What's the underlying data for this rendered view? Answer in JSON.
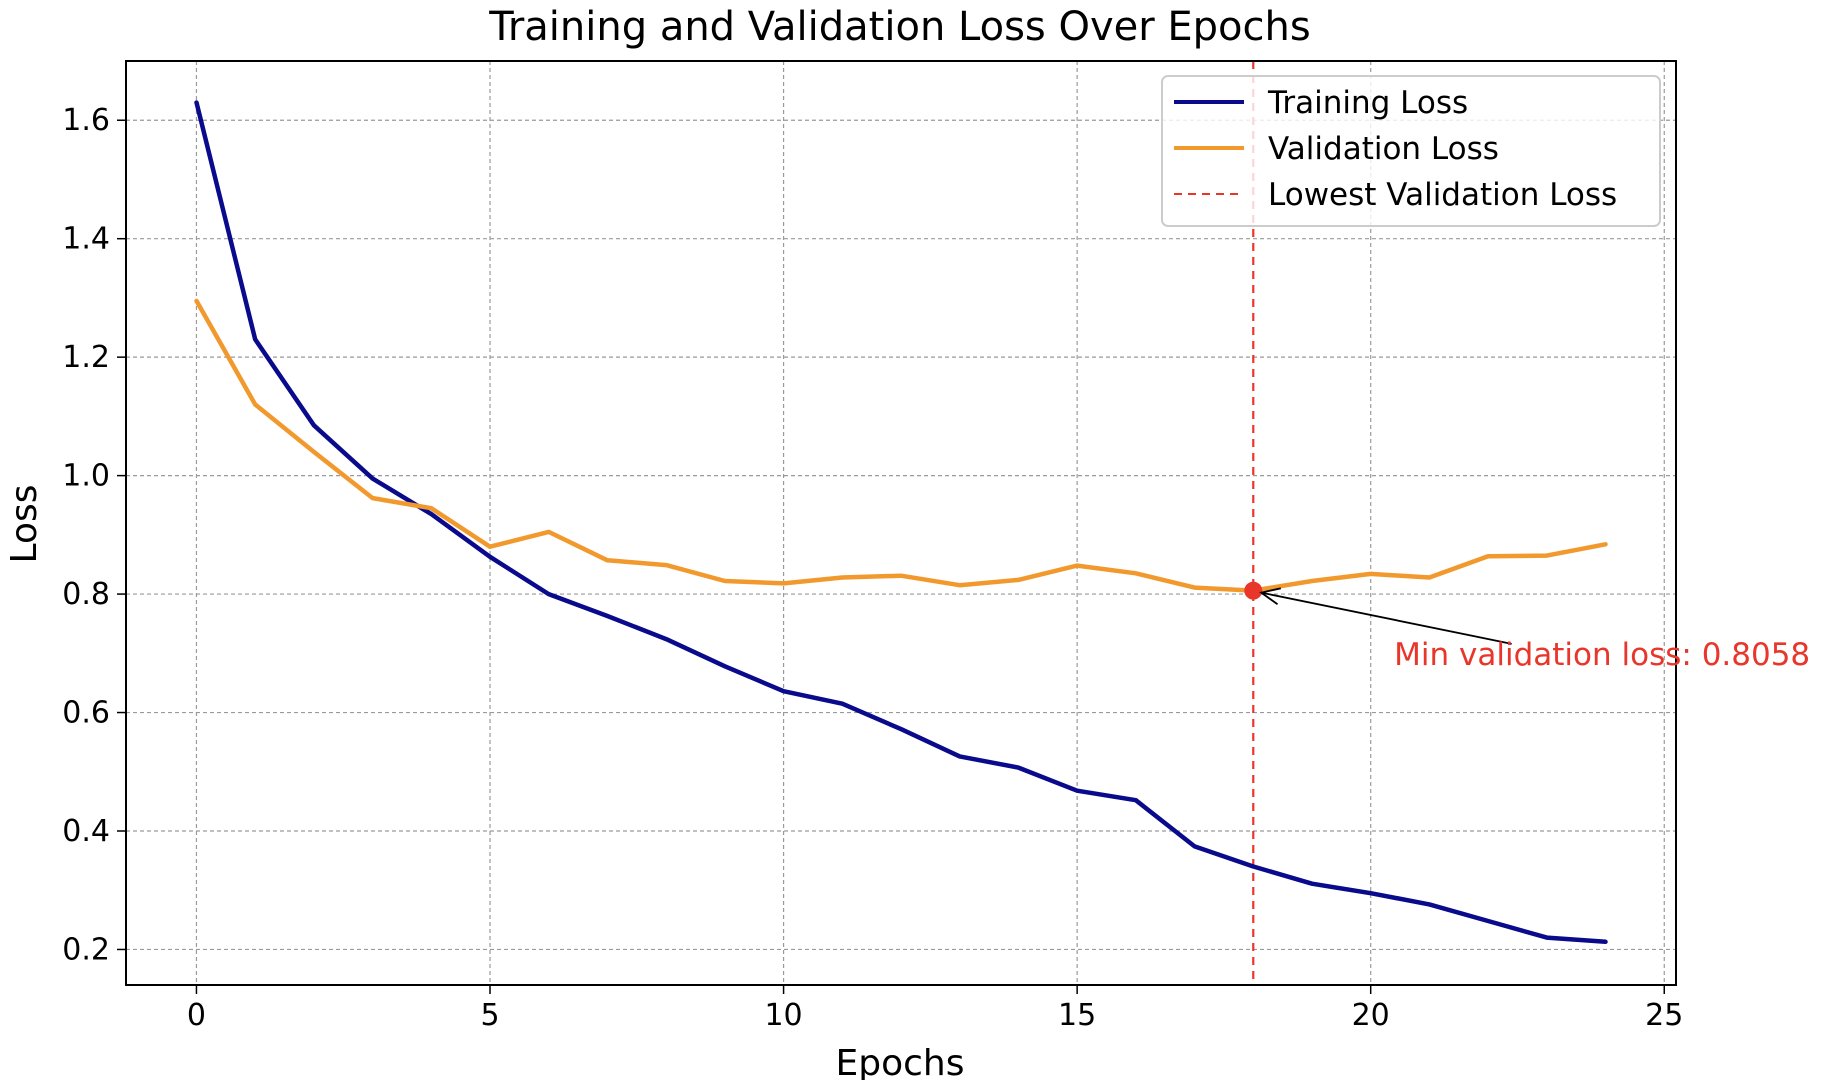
{
  "chart_data": {
    "type": "line",
    "title": "Training and Validation Loss Over Epochs",
    "xlabel": "Epochs",
    "ylabel": "Loss",
    "xlim": [
      -1.2,
      25.2
    ],
    "ylim": [
      0.14,
      1.7
    ],
    "xticks": [
      0,
      5,
      10,
      15,
      20,
      25
    ],
    "yticks": [
      0.2,
      0.4,
      0.6,
      0.8,
      1.0,
      1.2,
      1.4,
      1.6
    ],
    "grid": true,
    "legend_position": "top-right",
    "x": [
      0,
      1,
      2,
      3,
      4,
      5,
      6,
      7,
      8,
      9,
      10,
      11,
      12,
      13,
      14,
      15,
      16,
      17,
      18,
      19,
      20,
      21,
      22,
      23,
      24
    ],
    "series": [
      {
        "name": "Training Loss",
        "color": "#0a0a8c",
        "values": [
          1.63,
          1.23,
          1.085,
          0.995,
          0.935,
          0.863,
          0.8,
          0.763,
          0.724,
          0.678,
          0.636,
          0.615,
          0.572,
          0.526,
          0.507,
          0.468,
          0.452,
          0.374,
          0.34,
          0.311,
          0.295,
          0.276,
          0.248,
          0.22,
          0.213
        ]
      },
      {
        "name": "Validation Loss",
        "color": "#f2992e",
        "values": [
          1.295,
          1.12,
          1.04,
          0.962,
          0.945,
          0.88,
          0.905,
          0.857,
          0.849,
          0.822,
          0.818,
          0.828,
          0.831,
          0.815,
          0.824,
          0.848,
          0.835,
          0.811,
          0.8058,
          0.822,
          0.834,
          0.828,
          0.864,
          0.865,
          0.884
        ]
      }
    ],
    "vline": {
      "name": "Lowest Validation Loss",
      "x": 18,
      "color": "#e8362b",
      "style": "dashed"
    },
    "min_point": {
      "x": 18,
      "y": 0.8058,
      "color": "#e8362b"
    },
    "annotation": {
      "text": "Min validation loss: 0.8058",
      "text_x": 20.4,
      "text_y": 0.68,
      "arrow_start_x": 22.4,
      "arrow_start_y": 0.716,
      "color": "#e8362b"
    }
  }
}
